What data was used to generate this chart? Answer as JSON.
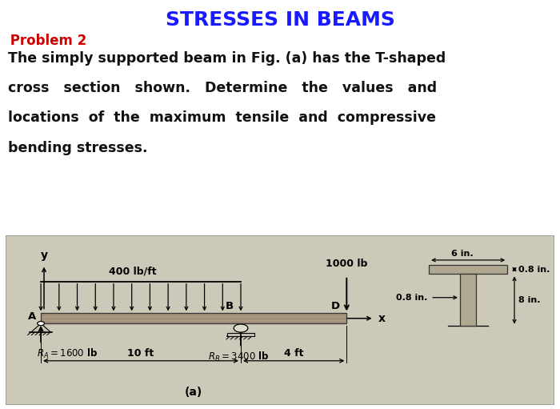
{
  "title": "STRESSES IN BEAMS",
  "title_color": "#1a1aff",
  "title_fontsize": 18,
  "problem_label": " Problem 2",
  "problem_color": "#cc0000",
  "problem_fontsize": 12,
  "body_lines": [
    "The simply supported beam in Fig. (a) has the T-shaped",
    "cross   section   shown.   Determine   the   values   and",
    "locations  of  the  maximum  tensile  and  compressive",
    "bending stresses."
  ],
  "body_fontsize": 12.5,
  "fig_bg": "#ffffff",
  "diagram_bg": "#cdc9b8",
  "dist_load_label": "400 lb/ft",
  "point_load_label": "1000 lb",
  "ra_label": "$R_A = 1600$ lb",
  "rb_label": "$R_B = 3400$ lb",
  "dim_10ft": "10 ft",
  "dim_4ft": "4 ft",
  "label_B": "B",
  "label_D": "D",
  "label_A": "A",
  "label_x": "x",
  "label_y": "y",
  "label_a": "(a)",
  "tsec_6in": "6 in.",
  "tsec_08in_flange": "0.8 in.",
  "tsec_08in_web": "0.8 in.",
  "tsec_8in": "8 in."
}
